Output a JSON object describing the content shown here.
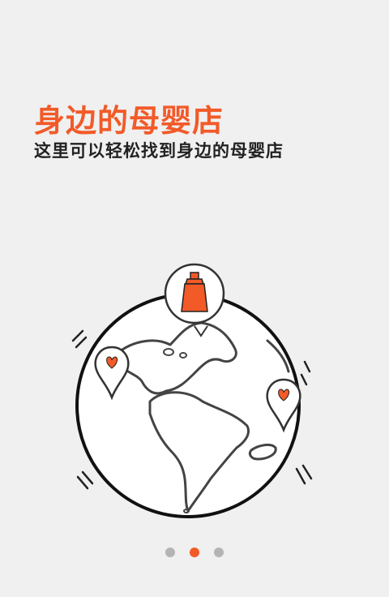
{
  "colors": {
    "accent": "#f25a28",
    "text_dark": "#222222",
    "dot_inactive": "#b4b4b4",
    "dot_active": "#f25a28"
  },
  "onboarding": {
    "title": "身边的母婴店",
    "subtitle": "这里可以轻松找到身边的母婴店"
  },
  "illustration": {
    "icon": "globe-with-map-pins-illustration",
    "pin_icon": "heart-map-pin-icon",
    "bottle_icon": "baby-bottle-icon"
  },
  "pager": {
    "pages": 3,
    "active_index": 1
  }
}
